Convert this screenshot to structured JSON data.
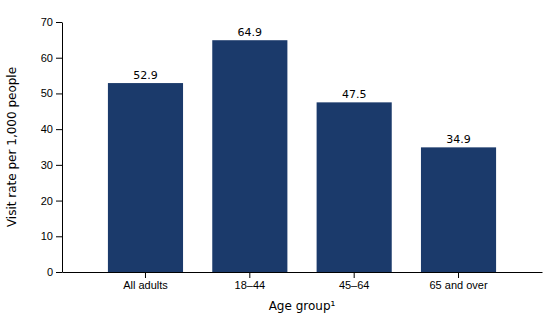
{
  "chart_data": {
    "type": "bar",
    "categories": [
      "All adults",
      "18–44",
      "45–64",
      "65 and over"
    ],
    "values": [
      52.9,
      64.9,
      47.5,
      34.9
    ],
    "color": "#1b3a6b",
    "xlabel": "Age group¹",
    "ylabel": "Visit rate per 1,000 people",
    "ylim": [
      0,
      70
    ],
    "yticks": [
      0,
      10,
      20,
      30,
      40,
      50,
      60,
      70
    ],
    "data_labels": true,
    "grid": false
  }
}
